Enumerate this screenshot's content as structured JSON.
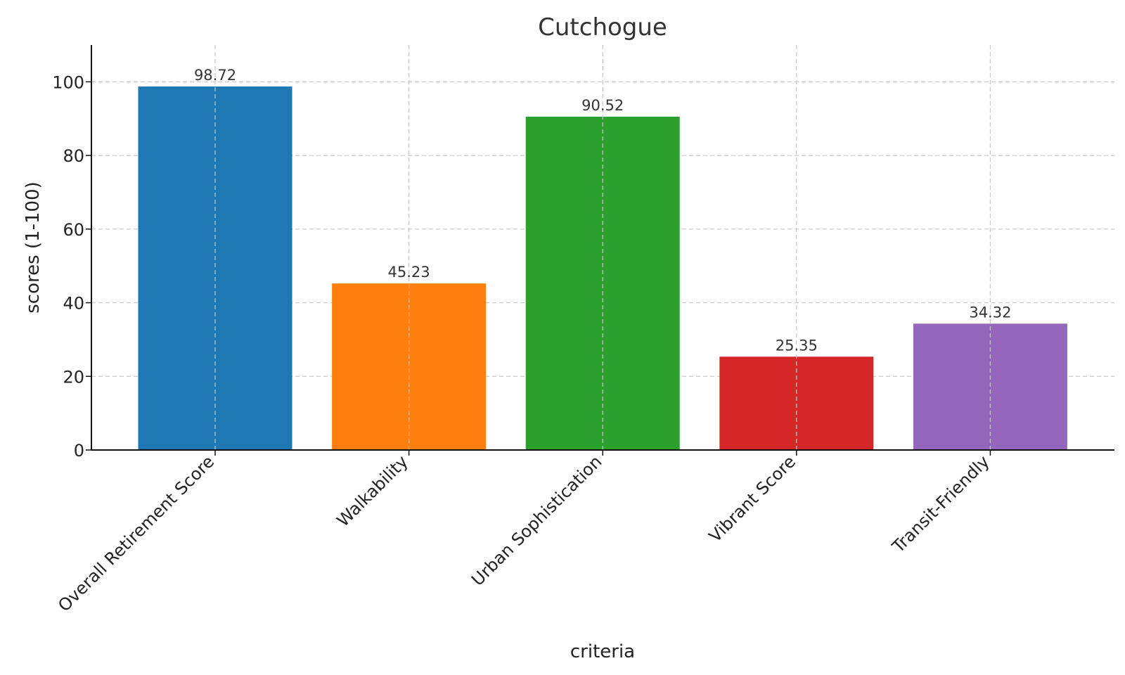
{
  "chart_data": {
    "type": "bar",
    "title": "Cutchogue",
    "xlabel": "criteria",
    "ylabel": "scores (1-100)",
    "categories": [
      "Overall Retirement Score",
      "Walkability",
      "Urban Sophistication",
      "Vibrant Score",
      "Transit-Friendly"
    ],
    "values": [
      98.72,
      45.23,
      90.52,
      25.35,
      34.32
    ],
    "value_labels": [
      "98.72",
      "45.23",
      "90.52",
      "25.35",
      "34.32"
    ],
    "colors": [
      "#1f77b4",
      "#ff7f0e",
      "#2ca02c",
      "#d62728",
      "#9467bd"
    ],
    "ylim": [
      0,
      110
    ],
    "yticks": [
      0,
      20,
      40,
      60,
      80,
      100
    ],
    "grid": true
  }
}
